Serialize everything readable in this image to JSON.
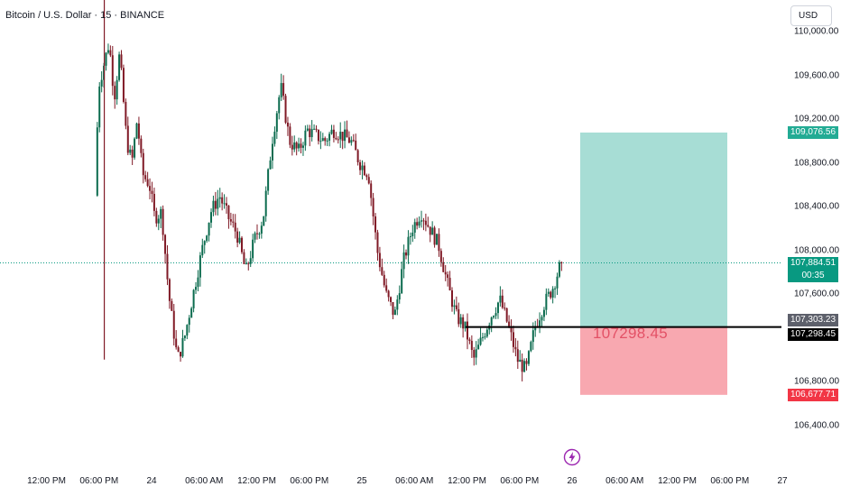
{
  "header": {
    "title": "Bitcoin / U.S. Dollar · 15 · BINANCE",
    "currency": "USD"
  },
  "price_axis": {
    "ticks": [
      {
        "label": "110,000.00",
        "value": 110000
      },
      {
        "label": "109,600.00",
        "value": 109600
      },
      {
        "label": "109,200.00",
        "value": 109200
      },
      {
        "label": "108,800.00",
        "value": 108800
      },
      {
        "label": "108,400.00",
        "value": 108400
      },
      {
        "label": "108,000.00",
        "value": 108000
      },
      {
        "label": "107,600.00",
        "value": 107600
      },
      {
        "label": "106,800.00",
        "value": 106800
      },
      {
        "label": "106,400.00",
        "value": 106400
      }
    ]
  },
  "time_axis": {
    "ticks": [
      {
        "label": "12:00 PM",
        "t": -12
      },
      {
        "label": "06:00 PM",
        "t": -6
      },
      {
        "label": "24",
        "t": 0
      },
      {
        "label": "06:00 AM",
        "t": 6
      },
      {
        "label": "12:00 PM",
        "t": 12
      },
      {
        "label": "06:00 PM",
        "t": 18
      },
      {
        "label": "25",
        "t": 24
      },
      {
        "label": "06:00 AM",
        "t": 30
      },
      {
        "label": "12:00 PM",
        "t": 36
      },
      {
        "label": "06:00 PM",
        "t": 42
      },
      {
        "label": "26",
        "t": 48
      },
      {
        "label": "06:00 AM",
        "t": 54
      },
      {
        "label": "12:00 PM",
        "t": 60
      },
      {
        "label": "06:00 PM",
        "t": 66
      },
      {
        "label": "27",
        "t": 72
      }
    ]
  },
  "badges": {
    "take_profit": {
      "label": "109,076.56",
      "value": 109076.56,
      "color": "#22ab94"
    },
    "current_price": {
      "label": "107,884.51",
      "countdown": "00:35",
      "value": 107884.51,
      "color": "#089981"
    },
    "entry_upper": {
      "label": "107,303.23",
      "value": 107303.23,
      "color": "#5d606b"
    },
    "entry": {
      "label": "107,298.45",
      "value": 107298.45,
      "color": "#000000"
    },
    "stop_loss": {
      "label": "106,677.71",
      "value": 106677.71,
      "color": "#f23645"
    }
  },
  "position_tool": {
    "entry_label": "107298.45",
    "entry": 107298.45,
    "take_profit": 109076.56,
    "stop_loss": 106677.71,
    "profit_color": "#a7ddd5",
    "loss_color": "#f8a8b0"
  },
  "colors": {
    "up": "#0b6b4e",
    "down": "#801a26",
    "price_line": "#089981"
  },
  "chart_data": {
    "type": "candlestick",
    "symbol": "Bitcoin / U.S. Dollar",
    "interval": "15",
    "exchange": "BINANCE",
    "ylim": [
      106200,
      110400
    ],
    "xlim": [
      -15,
      75
    ],
    "x_unit": "hours from 24 00:00",
    "path_points": [
      [
        -6.2,
        108500
      ],
      [
        -5.8,
        109500
      ],
      [
        -5.2,
        109700
      ],
      [
        -4.6,
        109900
      ],
      [
        -4.0,
        109400
      ],
      [
        -3.4,
        109800
      ],
      [
        -2.6,
        109000
      ],
      [
        -2.0,
        108800
      ],
      [
        -1.4,
        109200
      ],
      [
        -0.8,
        108700
      ],
      [
        0.0,
        108600
      ],
      [
        0.6,
        108300
      ],
      [
        1.4,
        108350
      ],
      [
        2.2,
        107600
      ],
      [
        3.2,
        107000
      ],
      [
        4.0,
        107200
      ],
      [
        5.0,
        107600
      ],
      [
        6.0,
        108000
      ],
      [
        7.0,
        108350
      ],
      [
        8.0,
        108500
      ],
      [
        9.0,
        108300
      ],
      [
        10.0,
        108150
      ],
      [
        11.0,
        107800
      ],
      [
        12.0,
        108100
      ],
      [
        13.0,
        108300
      ],
      [
        14.0,
        109000
      ],
      [
        15.0,
        109500
      ],
      [
        16.0,
        109000
      ],
      [
        17.0,
        108900
      ],
      [
        18.0,
        109100
      ],
      [
        19.0,
        109050
      ],
      [
        20.0,
        109000
      ],
      [
        21.0,
        109100
      ],
      [
        22.0,
        109050
      ],
      [
        23.0,
        109000
      ],
      [
        24.0,
        108800
      ],
      [
        25.0,
        108700
      ],
      [
        26.0,
        108000
      ],
      [
        27.0,
        107600
      ],
      [
        28.0,
        107400
      ],
      [
        29.0,
        107900
      ],
      [
        30.0,
        108200
      ],
      [
        31.0,
        108350
      ],
      [
        32.0,
        108200
      ],
      [
        33.0,
        108050
      ],
      [
        34.0,
        107700
      ],
      [
        35.0,
        107400
      ],
      [
        36.0,
        107300
      ],
      [
        37.0,
        107000
      ],
      [
        38.0,
        107200
      ],
      [
        39.0,
        107400
      ],
      [
        40.0,
        107550
      ],
      [
        41.0,
        107300
      ],
      [
        42.0,
        107000
      ],
      [
        43.0,
        106900
      ],
      [
        44.0,
        107300
      ],
      [
        45.0,
        107500
      ],
      [
        46.0,
        107650
      ],
      [
        47.0,
        107884.51
      ]
    ],
    "wicks": [
      {
        "t": -5.4,
        "high": 110400,
        "low": 107000
      }
    ]
  }
}
